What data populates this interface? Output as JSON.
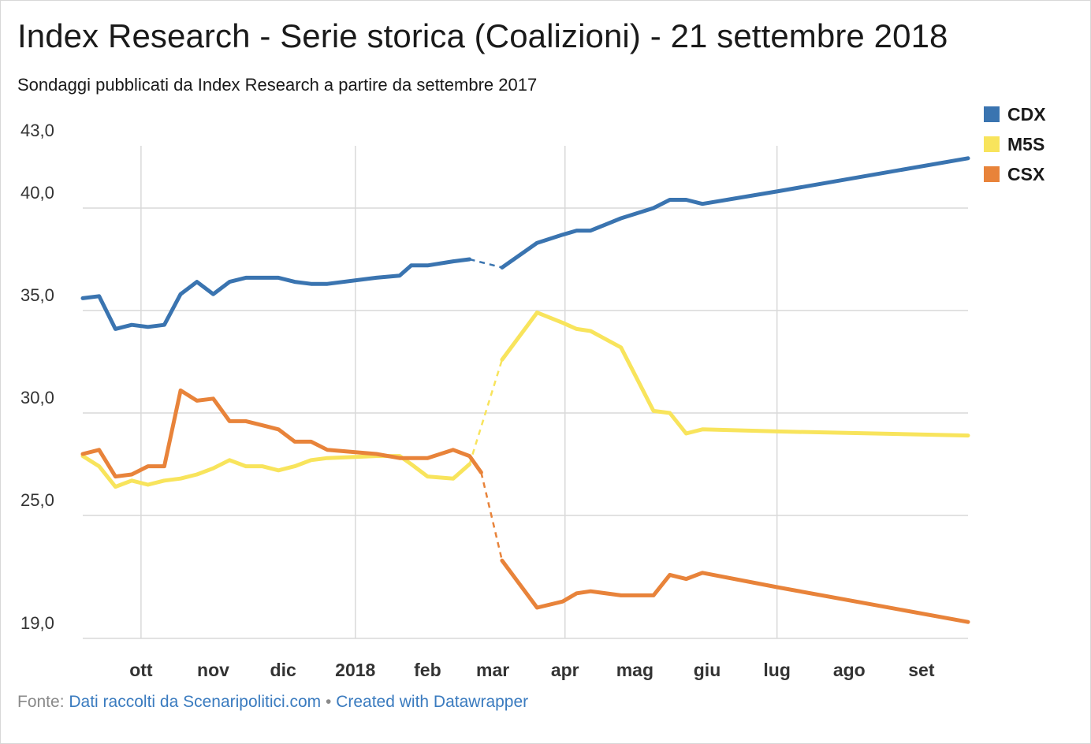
{
  "title": "Index Research - Serie storica (Coalizioni) - 21 settembre 2018",
  "subtitle": "Sondaggi pubblicati da Index Research a partire da settembre 2017",
  "footer": {
    "prefix": "Fonte: ",
    "source_link": "Dati raccolti da Scenaripolitici.com",
    "separator": " • ",
    "credit_link": "Created with Datawrapper"
  },
  "legend": [
    {
      "label": "CDX",
      "color": "#3a74b0"
    },
    {
      "label": "M5S",
      "color": "#f8e45c"
    },
    {
      "label": "CSX",
      "color": "#e8833a"
    }
  ],
  "chart_data": {
    "type": "line",
    "title": "Index Research - Serie storica (Coalizioni) - 21 settembre 2018",
    "xlabel": "",
    "ylabel": "",
    "x_axis": {
      "type": "date",
      "range": [
        "2017-09-06",
        "2018-09-21"
      ],
      "tick_labels": [
        {
          "label": "ott",
          "date": "2017-10-01"
        },
        {
          "label": "nov",
          "date": "2017-11-01"
        },
        {
          "label": "dic",
          "date": "2017-12-01"
        },
        {
          "label": "2018",
          "date": "2018-01-01"
        },
        {
          "label": "feb",
          "date": "2018-02-01"
        },
        {
          "label": "mar",
          "date": "2018-03-01"
        },
        {
          "label": "apr",
          "date": "2018-04-01"
        },
        {
          "label": "mag",
          "date": "2018-05-01"
        },
        {
          "label": "giu",
          "date": "2018-06-01"
        },
        {
          "label": "lug",
          "date": "2018-07-01"
        },
        {
          "label": "ago",
          "date": "2018-08-01"
        },
        {
          "label": "set",
          "date": "2018-09-01"
        }
      ],
      "gridlines_at": [
        "2017-10-01",
        "2018-01-01",
        "2018-04-01",
        "2018-07-01"
      ]
    },
    "y_axis": {
      "range": [
        19.0,
        43.0
      ],
      "ticks": [
        {
          "value": 43.0,
          "label": "43,0"
        },
        {
          "value": 40.0,
          "label": "40,0"
        },
        {
          "value": 35.0,
          "label": "35,0"
        },
        {
          "value": 30.0,
          "label": "30,0"
        },
        {
          "value": 25.0,
          "label": "25,0"
        },
        {
          "value": 19.0,
          "label": "19,0"
        }
      ]
    },
    "grid": true,
    "legend_position": "top-right",
    "gap_dashed": {
      "from": "2018-02-19",
      "to": "2018-03-05"
    },
    "series": [
      {
        "name": "CDX",
        "color": "#3a74b0",
        "points": [
          [
            "2017-09-06",
            35.6
          ],
          [
            "2017-09-13",
            35.7
          ],
          [
            "2017-09-20",
            34.1
          ],
          [
            "2017-09-27",
            34.3
          ],
          [
            "2017-10-04",
            34.2
          ],
          [
            "2017-10-11",
            34.3
          ],
          [
            "2017-10-18",
            35.8
          ],
          [
            "2017-10-25",
            36.4
          ],
          [
            "2017-11-01",
            35.8
          ],
          [
            "2017-11-08",
            36.4
          ],
          [
            "2017-11-15",
            36.6
          ],
          [
            "2017-11-22",
            36.6
          ],
          [
            "2017-11-29",
            36.6
          ],
          [
            "2017-12-06",
            36.4
          ],
          [
            "2017-12-13",
            36.3
          ],
          [
            "2017-12-20",
            36.3
          ],
          [
            "2018-01-10",
            36.6
          ],
          [
            "2018-01-20",
            36.7
          ],
          [
            "2018-01-25",
            37.2
          ],
          [
            "2018-02-01",
            37.2
          ],
          [
            "2018-02-12",
            37.4
          ],
          [
            "2018-02-19",
            37.5
          ],
          [
            "2018-03-05",
            37.1
          ],
          [
            "2018-03-20",
            38.3
          ],
          [
            "2018-03-31",
            38.7
          ],
          [
            "2018-04-06",
            38.9
          ],
          [
            "2018-04-12",
            38.9
          ],
          [
            "2018-04-25",
            39.5
          ],
          [
            "2018-05-09",
            40.0
          ],
          [
            "2018-05-16",
            40.4
          ],
          [
            "2018-05-23",
            40.4
          ],
          [
            "2018-05-30",
            40.2
          ],
          [
            "2018-07-01",
            40.8
          ],
          [
            "2018-09-21",
            42.4
          ]
        ]
      },
      {
        "name": "M5S",
        "color": "#f8e45c",
        "points": [
          [
            "2017-09-06",
            27.9
          ],
          [
            "2017-09-13",
            27.4
          ],
          [
            "2017-09-20",
            26.4
          ],
          [
            "2017-09-27",
            26.7
          ],
          [
            "2017-10-04",
            26.5
          ],
          [
            "2017-10-11",
            26.7
          ],
          [
            "2017-10-18",
            26.8
          ],
          [
            "2017-10-25",
            27.0
          ],
          [
            "2017-11-01",
            27.3
          ],
          [
            "2017-11-08",
            27.7
          ],
          [
            "2017-11-15",
            27.4
          ],
          [
            "2017-11-22",
            27.4
          ],
          [
            "2017-11-29",
            27.2
          ],
          [
            "2017-12-06",
            27.4
          ],
          [
            "2017-12-13",
            27.7
          ],
          [
            "2017-12-20",
            27.8
          ],
          [
            "2018-01-10",
            27.9
          ],
          [
            "2018-01-20",
            27.9
          ],
          [
            "2018-01-25",
            27.5
          ],
          [
            "2018-02-01",
            26.9
          ],
          [
            "2018-02-12",
            26.8
          ],
          [
            "2018-02-19",
            27.5
          ],
          [
            "2018-03-05",
            32.6
          ],
          [
            "2018-03-20",
            34.9
          ],
          [
            "2018-03-31",
            34.4
          ],
          [
            "2018-04-06",
            34.1
          ],
          [
            "2018-04-12",
            34.0
          ],
          [
            "2018-04-25",
            33.2
          ],
          [
            "2018-05-09",
            30.1
          ],
          [
            "2018-05-16",
            30.0
          ],
          [
            "2018-05-23",
            29.0
          ],
          [
            "2018-05-30",
            29.2
          ],
          [
            "2018-07-01",
            29.1
          ],
          [
            "2018-09-21",
            28.9
          ]
        ]
      },
      {
        "name": "CSX",
        "color": "#e8833a",
        "points": [
          [
            "2017-09-06",
            28.0
          ],
          [
            "2017-09-13",
            28.2
          ],
          [
            "2017-09-20",
            26.9
          ],
          [
            "2017-09-27",
            27.0
          ],
          [
            "2017-10-04",
            27.4
          ],
          [
            "2017-10-11",
            27.4
          ],
          [
            "2017-10-18",
            31.1
          ],
          [
            "2017-10-25",
            30.6
          ],
          [
            "2017-11-01",
            30.7
          ],
          [
            "2017-11-08",
            29.6
          ],
          [
            "2017-11-15",
            29.6
          ],
          [
            "2017-11-22",
            29.4
          ],
          [
            "2017-11-29",
            29.2
          ],
          [
            "2017-12-06",
            28.6
          ],
          [
            "2017-12-13",
            28.6
          ],
          [
            "2017-12-20",
            28.2
          ],
          [
            "2018-01-10",
            28.0
          ],
          [
            "2018-01-20",
            27.8
          ],
          [
            "2018-01-25",
            27.8
          ],
          [
            "2018-02-01",
            27.8
          ],
          [
            "2018-02-12",
            28.2
          ],
          [
            "2018-02-19",
            27.9
          ],
          [
            "2018-02-24",
            27.1
          ],
          [
            "2018-03-05",
            22.8
          ],
          [
            "2018-03-20",
            20.5
          ],
          [
            "2018-03-31",
            20.8
          ],
          [
            "2018-04-06",
            21.2
          ],
          [
            "2018-04-12",
            21.3
          ],
          [
            "2018-04-25",
            21.1
          ],
          [
            "2018-05-09",
            21.1
          ],
          [
            "2018-05-16",
            22.1
          ],
          [
            "2018-05-23",
            21.9
          ],
          [
            "2018-05-30",
            22.2
          ],
          [
            "2018-07-01",
            21.5
          ],
          [
            "2018-09-21",
            19.8
          ]
        ]
      }
    ]
  }
}
